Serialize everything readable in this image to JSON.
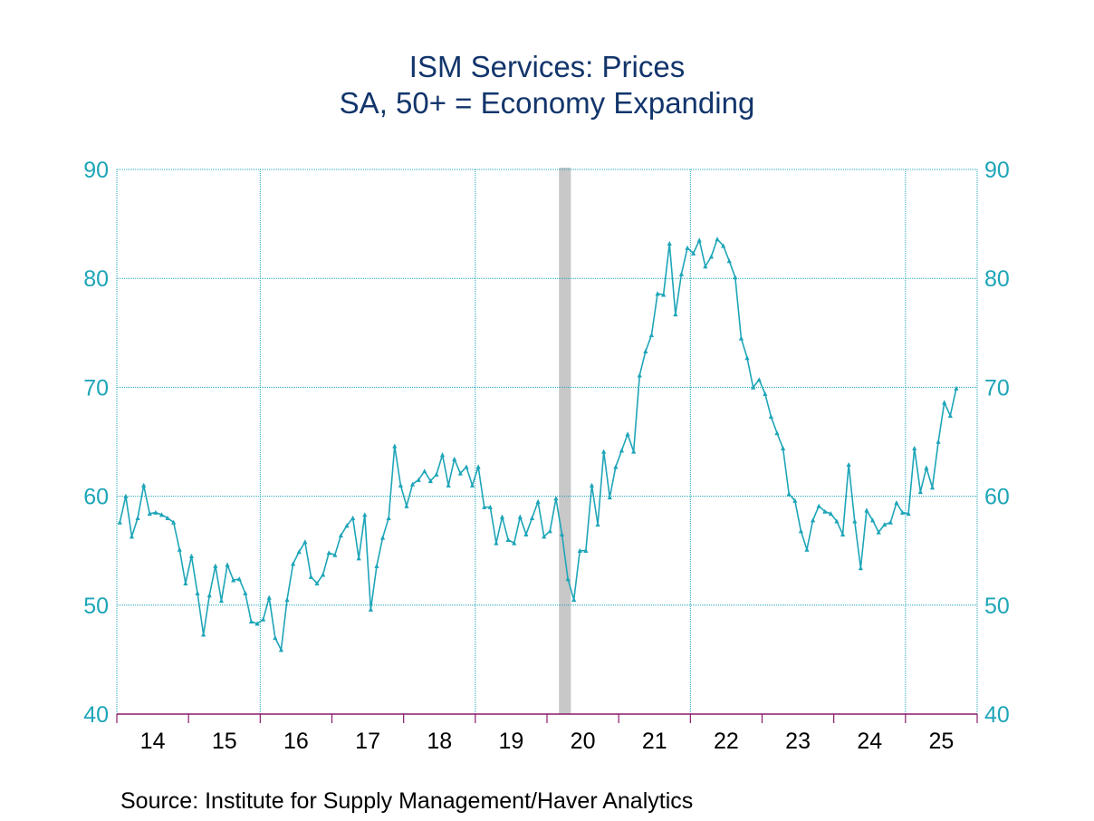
{
  "chart_data": {
    "type": "line",
    "title": "ISM Services: Prices",
    "subtitle": "SA, 50+ = Economy Expanding",
    "source": "Source:  Institute for Supply Management/Haver Analytics",
    "ylim": [
      40,
      90
    ],
    "y_ticks": [
      "40",
      "50",
      "60",
      "70",
      "80",
      "90"
    ],
    "x_start": "2014-01",
    "x_end": "2025-02",
    "x_tick_labels": [
      "14",
      "15",
      "16",
      "17",
      "18",
      "19",
      "20",
      "21",
      "22",
      "23",
      "24",
      "25"
    ],
    "vertical_grid_years": [
      "16",
      "19",
      "22",
      "25"
    ],
    "grid": true,
    "recession_shading": {
      "start": "2020-03",
      "end": "2020-04"
    },
    "colors": {
      "line": "#1ea5b8",
      "axis": "#1ea5b8",
      "title": "#12356b",
      "recession": "#c8c8c8",
      "xaxis": "#8b1a6b"
    },
    "series": [
      {
        "values": [
          57.6,
          60.0,
          56.3,
          58.0,
          61.0,
          58.4,
          58.5,
          58.3,
          58.0,
          57.6,
          55.1,
          52.0,
          54.5,
          51.1,
          47.3,
          50.9,
          53.6,
          50.4,
          53.7,
          52.3,
          52.4,
          51.1,
          48.5,
          48.3,
          48.7,
          50.7,
          47.0,
          45.9,
          50.5,
          53.8,
          54.9,
          55.8,
          52.6,
          52.0,
          52.8,
          54.8,
          54.6,
          56.4,
          57.3,
          58.0,
          54.3,
          58.3,
          49.6,
          53.6,
          56.2,
          58.0,
          64.6,
          61.0,
          59.1,
          61.1,
          61.5,
          62.3,
          61.4,
          62.0,
          63.8,
          61.0,
          63.4,
          62.1,
          62.7,
          61.0,
          62.7,
          59.0,
          59.0,
          55.7,
          58.1,
          56.0,
          55.7,
          58.1,
          56.5,
          58.0,
          59.5,
          56.3,
          56.8,
          59.8,
          56.5,
          52.4,
          50.5,
          55.0,
          55.0,
          61.0,
          57.4,
          64.1,
          59.9,
          62.7,
          64.2,
          65.7,
          64.1,
          71.1,
          73.3,
          74.8,
          78.6,
          78.5,
          83.2,
          76.7,
          80.4,
          82.8,
          82.3,
          83.5,
          81.1,
          82.0,
          83.6,
          83.0,
          81.6,
          80.1,
          74.5,
          72.7,
          70.0,
          70.7,
          69.4,
          67.3,
          65.8,
          64.4,
          60.2,
          59.6,
          56.8,
          55.1,
          57.8,
          59.1,
          58.6,
          58.4,
          57.7,
          56.5,
          62.9,
          57.7,
          53.4,
          58.7,
          57.8,
          56.7,
          57.4,
          57.6,
          59.4,
          58.5,
          58.4,
          64.4,
          60.4,
          62.6,
          60.8,
          65.0,
          68.6,
          67.4,
          69.9
        ]
      }
    ]
  }
}
